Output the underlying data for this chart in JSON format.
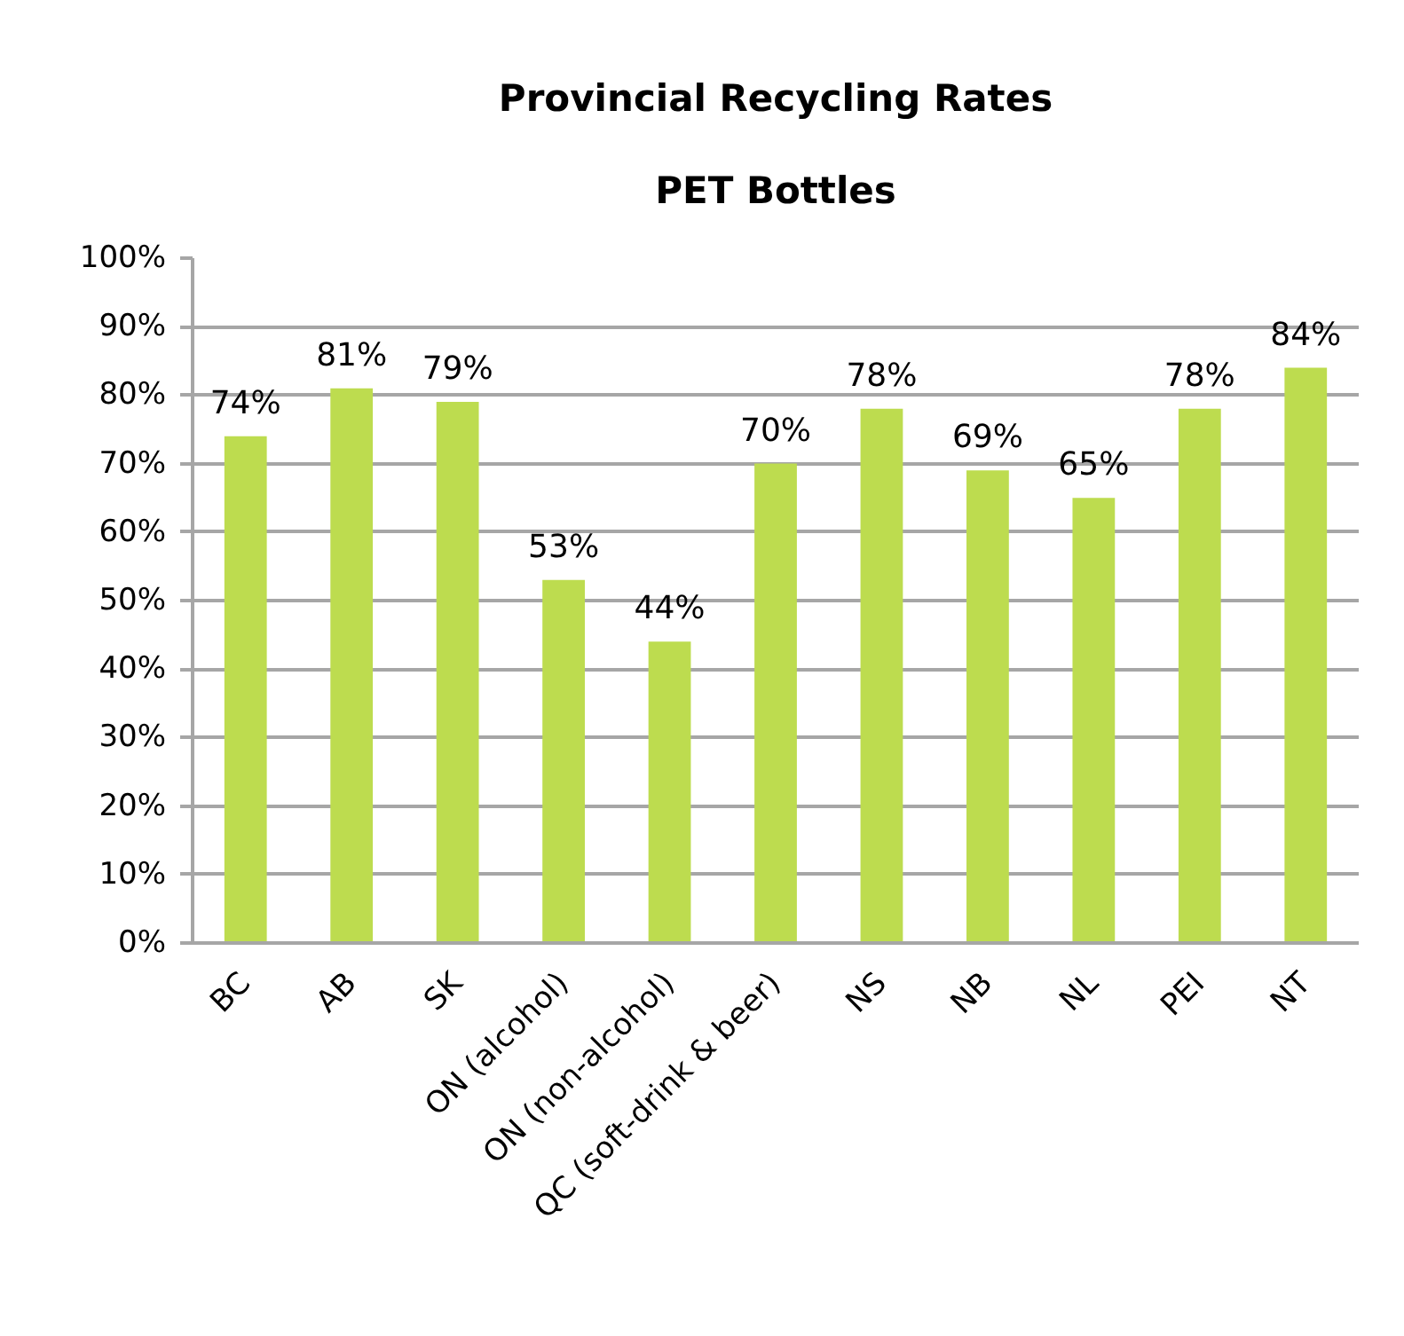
{
  "chart_data": {
    "type": "bar",
    "title": "Provincial Recycling Rates",
    "subtitle": "PET Bottles",
    "categories": [
      "BC",
      "AB",
      "SK",
      "ON (alcohol)",
      "ON (non-alcohol)",
      "QC (soft-drink & beer)",
      "NS",
      "NB",
      "NL",
      "PEI",
      "NT"
    ],
    "values": [
      74,
      81,
      79,
      53,
      44,
      70,
      78,
      69,
      65,
      78,
      84
    ],
    "value_labels": [
      "74%",
      "81%",
      "79%",
      "53%",
      "44%",
      "70%",
      "78%",
      "69%",
      "65%",
      "78%",
      "84%"
    ],
    "color": "#bddc4f",
    "ylim": [
      0,
      100
    ],
    "yticks": [
      {
        "value": 0,
        "label": "0%"
      },
      {
        "value": 10,
        "label": "10%"
      },
      {
        "value": 20,
        "label": "20%"
      },
      {
        "value": 30,
        "label": "30%"
      },
      {
        "value": 40,
        "label": "40%"
      },
      {
        "value": 50,
        "label": "50%"
      },
      {
        "value": 60,
        "label": "60%"
      },
      {
        "value": 70,
        "label": "70%"
      },
      {
        "value": 80,
        "label": "80%"
      },
      {
        "value": 90,
        "label": "90%"
      },
      {
        "value": 100,
        "label": "100%"
      }
    ],
    "grid": "y"
  }
}
